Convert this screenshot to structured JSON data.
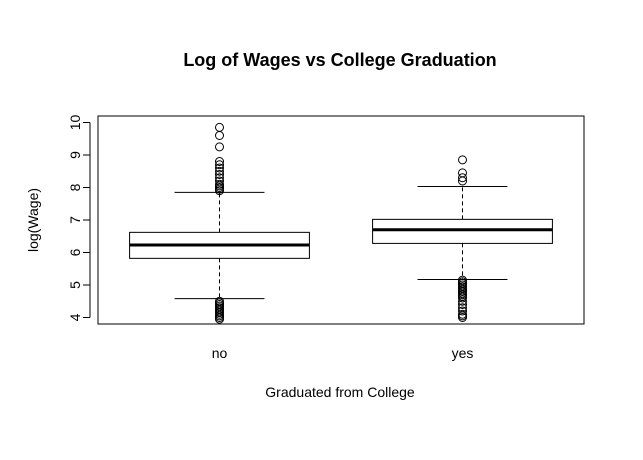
{
  "chart_data": {
    "type": "boxplot",
    "title": "Log of Wages vs College Graduation",
    "xlabel": "Graduated from College",
    "ylabel": "log(Wage)",
    "ylim": [
      3.8,
      10.2
    ],
    "y_ticks": [
      4,
      5,
      6,
      7,
      8,
      9,
      10
    ],
    "grid": false,
    "legend": "none",
    "categories": [
      "no",
      "yes"
    ],
    "boxes": [
      {
        "category": "no",
        "whisker_low": 4.58,
        "q1": 5.82,
        "median": 6.23,
        "q3": 6.62,
        "whisker_high": 7.85,
        "outliers_high": [
          7.9,
          7.95,
          8.0,
          8.05,
          8.1,
          8.2,
          8.3,
          8.4,
          8.5,
          8.6,
          8.7,
          8.8,
          9.25,
          9.6,
          9.85
        ],
        "outliers_low": [
          4.5,
          4.45,
          4.4,
          4.35,
          4.3,
          4.25,
          4.2,
          4.15,
          4.1,
          4.05,
          4.0,
          3.95
        ]
      },
      {
        "category": "yes",
        "whisker_low": 5.17,
        "q1": 6.28,
        "median": 6.7,
        "q3": 7.02,
        "whisker_high": 8.03,
        "outliers_high": [
          8.2,
          8.3,
          8.45,
          8.85
        ],
        "outliers_low": [
          5.15,
          5.1,
          5.05,
          5.0,
          4.95,
          4.9,
          4.85,
          4.8,
          4.75,
          4.7,
          4.65,
          4.6,
          4.5,
          4.4,
          4.3,
          4.2,
          4.1,
          4.05,
          4.0
        ]
      }
    ]
  }
}
